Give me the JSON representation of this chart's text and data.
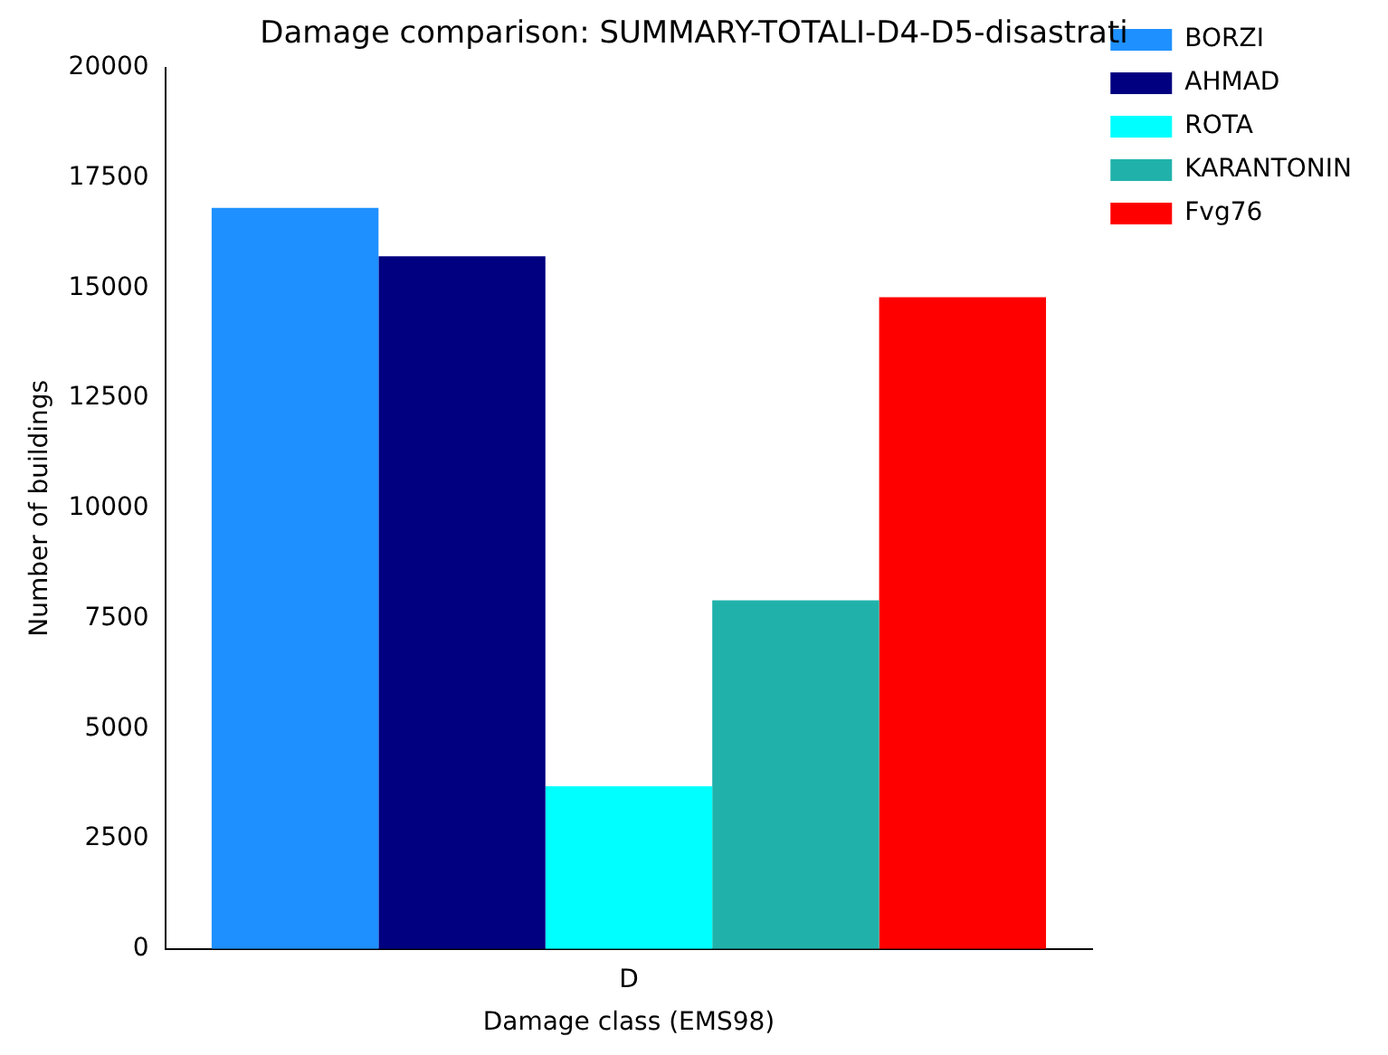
{
  "chart_data": {
    "type": "bar",
    "title": "Damage comparison: SUMMARY-TOTALI-D4-D5-disastrati",
    "xlabel": "Damage class (EMS98)",
    "ylabel": "Number of buildings",
    "categories": [
      "D"
    ],
    "series": [
      {
        "name": "BORZI",
        "color": "#1e90ff",
        "values": [
          16820
        ]
      },
      {
        "name": "AHMAD",
        "color": "#000080",
        "values": [
          15720
        ]
      },
      {
        "name": "ROTA",
        "color": "#00ffff",
        "values": [
          3690
        ]
      },
      {
        "name": "KARANTONIN",
        "color": "#20b2aa",
        "values": [
          7910
        ]
      },
      {
        "name": "Fvg76",
        "color": "#ff0000",
        "values": [
          14790
        ]
      }
    ],
    "ylim": [
      0,
      20000
    ],
    "yticks": [
      0,
      2500,
      5000,
      7500,
      10000,
      12500,
      15000,
      17500,
      20000
    ],
    "grid": false,
    "legend": "top right"
  }
}
